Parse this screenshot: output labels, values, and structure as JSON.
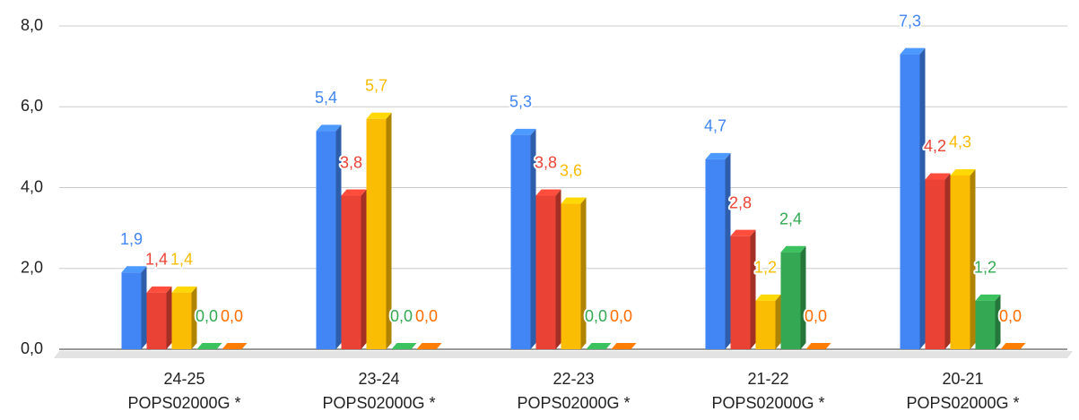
{
  "chart_data": {
    "type": "bar3d",
    "categories": [
      [
        "24-25",
        "POPS02000G *"
      ],
      [
        "23-24",
        "POPS02000G *"
      ],
      [
        "22-23",
        "POPS02000G *"
      ],
      [
        "21-22",
        "POPS02000G *"
      ],
      [
        "20-21",
        "POPS02000G *"
      ]
    ],
    "series": [
      {
        "color": "#4285f4",
        "values": [
          1.9,
          5.4,
          5.3,
          4.7,
          7.3
        ],
        "value_labels": [
          "1,9",
          "5,4",
          "5,3",
          "4,7",
          "7,3"
        ]
      },
      {
        "color": "#ea4335",
        "values": [
          1.4,
          3.8,
          3.8,
          2.8,
          4.2
        ],
        "value_labels": [
          "1,4",
          "3,8",
          "3,8",
          "2,8",
          "4,2"
        ]
      },
      {
        "color": "#fbbc04",
        "values": [
          1.4,
          5.7,
          3.6,
          1.2,
          4.3
        ],
        "value_labels": [
          "1,4",
          "5,7",
          "3,6",
          "1,2",
          "4,3"
        ]
      },
      {
        "color": "#34a853",
        "values": [
          0.0,
          0.0,
          0.0,
          2.4,
          1.2
        ],
        "value_labels": [
          "0,0",
          "0,0",
          "0,0",
          "2,4",
          "1,2"
        ]
      },
      {
        "color": "#ff6d01",
        "values": [
          0.0,
          0.0,
          0.0,
          0.0,
          0.0
        ],
        "value_labels": [
          "0,0",
          "0,0",
          "0,0",
          "0,0",
          "0,0"
        ]
      }
    ],
    "ylim": [
      0,
      8
    ],
    "yticks": [
      {
        "value": 0,
        "label": "0,0"
      },
      {
        "value": 2,
        "label": "2,0"
      },
      {
        "value": 4,
        "label": "4,0"
      },
      {
        "value": 6,
        "label": "6,0"
      },
      {
        "value": 8,
        "label": "8,0"
      }
    ],
    "grid": true
  }
}
